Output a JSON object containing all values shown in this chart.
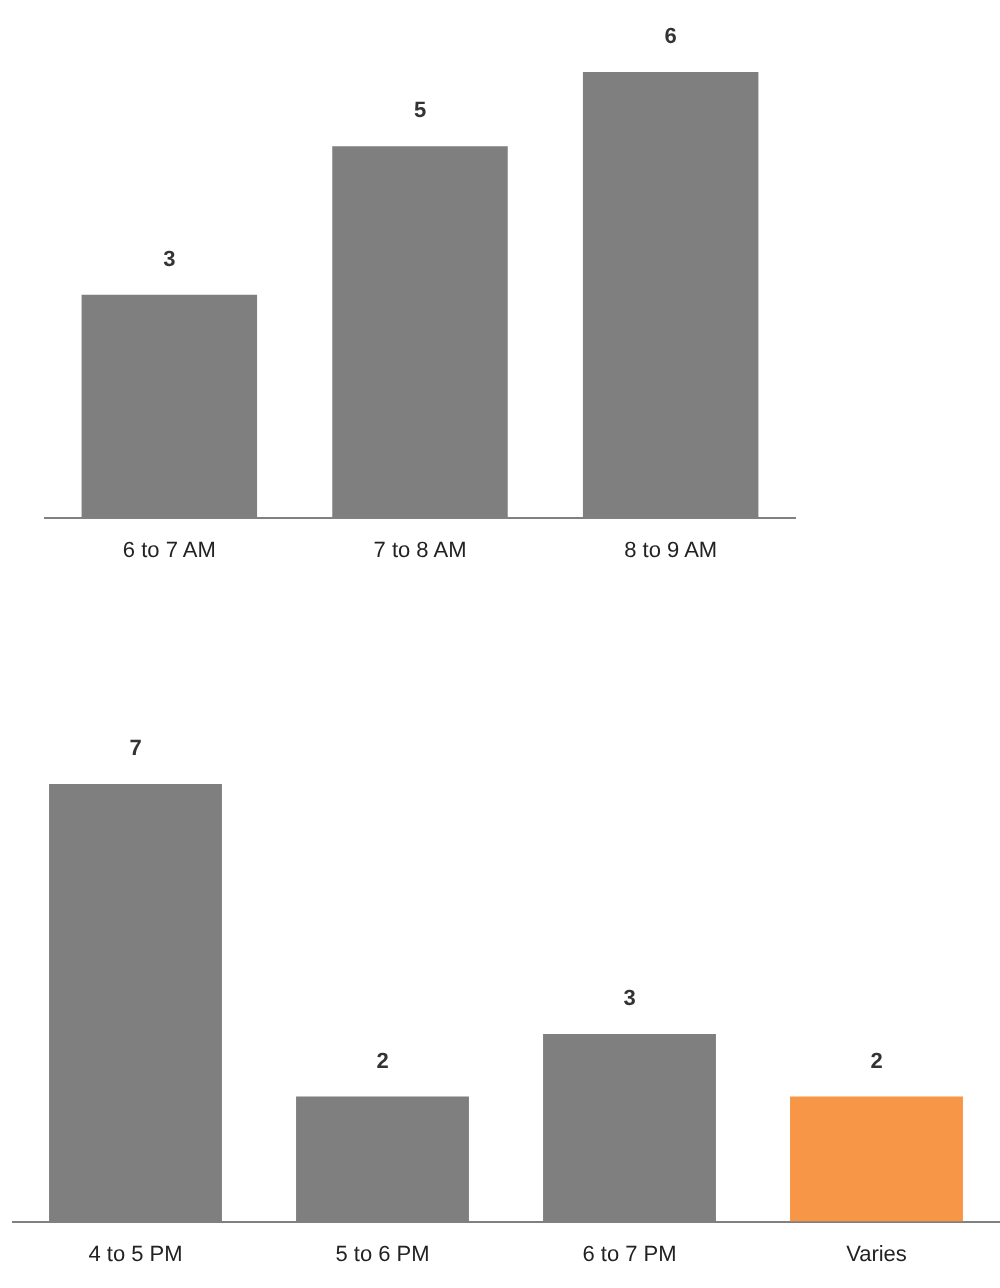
{
  "chart_data": [
    {
      "type": "bar",
      "categories": [
        "6 to 7 AM",
        "7 to 8 AM",
        "8 to 9 AM"
      ],
      "values": [
        3,
        5,
        6
      ],
      "colors": [
        "#7f7f7f",
        "#7f7f7f",
        "#7f7f7f"
      ],
      "data_labels": true,
      "grid": false,
      "legend": false,
      "tick_labels": "x"
    },
    {
      "type": "bar",
      "categories": [
        "4 to 5 PM",
        "5 to 6 PM",
        "6 to 7 PM",
        "Varies"
      ],
      "values": [
        7,
        2,
        3,
        2
      ],
      "colors": [
        "#7f7f7f",
        "#7f7f7f",
        "#7f7f7f",
        "#f79646"
      ],
      "data_labels": true,
      "grid": false,
      "legend": false,
      "tick_labels": "x"
    }
  ]
}
